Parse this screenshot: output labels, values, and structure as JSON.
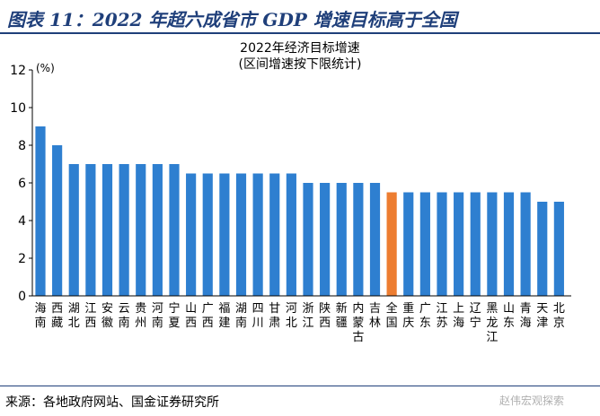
{
  "figure_title": "图表 11：2022 年超六成省市 GDP 增速目标高于全国",
  "source": "来源：各地政府网站、国金证券研究所",
  "watermark": "赵伟宏观探索",
  "colors": {
    "bar": "#2e7fd0",
    "highlight": "#ed7d31",
    "title": "#1f3f7a"
  },
  "chart_data": {
    "type": "bar",
    "title": "2022年经济目标增速",
    "subtitle": "(区间增速按下限统计)",
    "ylabel": "(%)",
    "xlabel": "",
    "ylim": [
      0,
      12
    ],
    "yticks": [
      0,
      2,
      4,
      6,
      8,
      10,
      12
    ],
    "grid": false,
    "highlight_category": "全国",
    "categories": [
      "海南",
      "西藏",
      "湖北",
      "江西",
      "安徽",
      "云南",
      "贵州",
      "河南",
      "宁夏",
      "山西",
      "广西",
      "福建",
      "湖南",
      "四川",
      "甘肃",
      "河北",
      "浙江",
      "陕西",
      "新疆",
      "内蒙古",
      "吉林",
      "全国",
      "重庆",
      "广东",
      "江苏",
      "上海",
      "辽宁",
      "黑龙江",
      "山东",
      "青海",
      "天津",
      "北京"
    ],
    "values": [
      9,
      8,
      7,
      7,
      7,
      7,
      7,
      7,
      7,
      6.5,
      6.5,
      6.5,
      6.5,
      6.5,
      6.5,
      6.5,
      6,
      6,
      6,
      6,
      6,
      5.5,
      5.5,
      5.5,
      5.5,
      5.5,
      5.5,
      5.5,
      5.5,
      5.5,
      5,
      5
    ]
  }
}
